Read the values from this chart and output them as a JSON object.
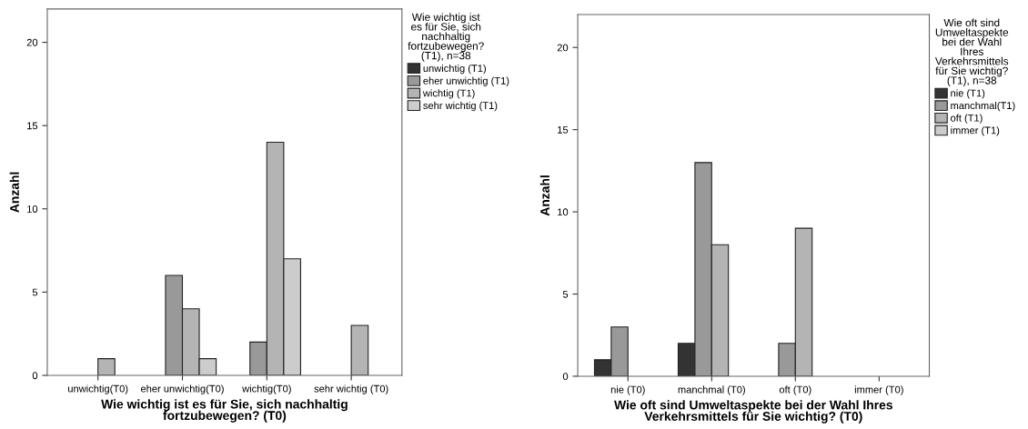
{
  "chart_data": [
    {
      "type": "bar",
      "xlabel": "Wie wichtig ist es für Sie, sich nachhaltig\nfortzubewegen? (T0)",
      "ylabel": "Anzahl",
      "legend_title": "Wie wichtig ist\nes für Sie, sich\nnachhaltig\nfortzubewegen?\n(T1), n=38",
      "legend": "right",
      "grid": false,
      "categories": [
        "unwichtig(T0)",
        "eher unwichtig(T0)",
        "wichtig(T0)",
        "sehr wichtig (T0)"
      ],
      "ylim": [
        0,
        22
      ],
      "yticks": [
        0,
        5,
        10,
        15,
        20
      ],
      "series": [
        {
          "name": "unwichtig (T1)",
          "color": "#333333",
          "values": [
            0,
            0,
            0,
            0
          ]
        },
        {
          "name": "eher unwichtig (T1)",
          "color": "#999999",
          "values": [
            0,
            6,
            2,
            0
          ]
        },
        {
          "name": "wichtig (T1)",
          "color": "#b4b4b4",
          "values": [
            1,
            4,
            14,
            3
          ]
        },
        {
          "name": "sehr wichtig (T1)",
          "color": "#cccccc",
          "values": [
            0,
            1,
            7,
            0
          ]
        }
      ]
    },
    {
      "type": "bar",
      "xlabel": "Wie oft sind Umweltaspekte bei der Wahl Ihres\nVerkehrsmittels für Sie wichtig? (T0)",
      "ylabel": "Anzahl",
      "legend_title": "Wie oft sind\nUmweltaspekte\nbei der Wahl\nIhres\nVerkehrsmittels\nfür Sie wichtig?\n(T1), n=38",
      "legend": "right",
      "grid": false,
      "categories": [
        "nie (T0)",
        "manchmal (T0)",
        "oft (T0)",
        "immer (T0)"
      ],
      "ylim": [
        0,
        22
      ],
      "yticks": [
        0,
        5,
        10,
        15,
        20
      ],
      "series": [
        {
          "name": "nie (T1)",
          "color": "#333333",
          "values": [
            1,
            2,
            0,
            0
          ]
        },
        {
          "name": "manchmal(T1)",
          "color": "#999999",
          "values": [
            3,
            13,
            2,
            0
          ]
        },
        {
          "name": "oft (T1)",
          "color": "#b4b4b4",
          "values": [
            0,
            8,
            9,
            0
          ]
        },
        {
          "name": "immer (T1)",
          "color": "#cccccc",
          "values": [
            0,
            0,
            0,
            0
          ]
        }
      ]
    }
  ]
}
